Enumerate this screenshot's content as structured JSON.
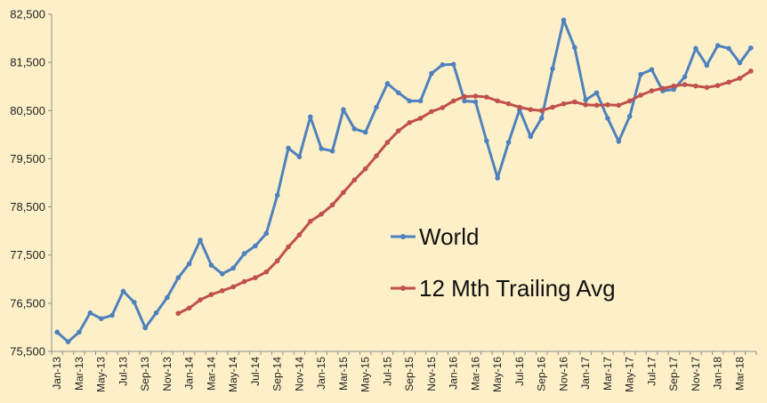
{
  "chart_data": {
    "type": "line",
    "title": "",
    "xlabel": "",
    "ylabel": "",
    "ylim": [
      75500,
      82500
    ],
    "y_ticks": [
      "75,500",
      "76,500",
      "77,500",
      "78,500",
      "79,500",
      "80,500",
      "81,500",
      "82,500"
    ],
    "y_tick_values": [
      75500,
      76500,
      77500,
      78500,
      79500,
      80500,
      81500,
      82500
    ],
    "x": [
      "Jan-13",
      "Feb-13",
      "Mar-13",
      "Apr-13",
      "May-13",
      "Jun-13",
      "Jul-13",
      "Aug-13",
      "Sep-13",
      "Oct-13",
      "Nov-13",
      "Dec-13",
      "Jan-14",
      "Feb-14",
      "Mar-14",
      "Apr-14",
      "May-14",
      "Jun-14",
      "Jul-14",
      "Aug-14",
      "Sep-14",
      "Oct-14",
      "Nov-14",
      "Dec-14",
      "Jan-15",
      "Feb-15",
      "Mar-15",
      "Apr-15",
      "May-15",
      "Jun-15",
      "Jul-15",
      "Aug-15",
      "Sep-15",
      "Oct-15",
      "Nov-15",
      "Dec-15",
      "Jan-16",
      "Feb-16",
      "Mar-16",
      "Apr-16",
      "May-16",
      "Jun-16",
      "Jul-16",
      "Aug-16",
      "Sep-16",
      "Oct-16",
      "Nov-16",
      "Dec-16",
      "Jan-17",
      "Feb-17",
      "Mar-17",
      "Apr-17",
      "May-17",
      "Jun-17",
      "Jul-17",
      "Aug-17",
      "Sep-17",
      "Oct-17",
      "Nov-17",
      "Dec-17",
      "Jan-18",
      "Feb-18",
      "Mar-18",
      "Apr-18"
    ],
    "x_tick_labels": [
      "Jan-13",
      "Mar-13",
      "May-13",
      "Jul-13",
      "Sep-13",
      "Nov-13",
      "Jan-14",
      "Mar-14",
      "May-14",
      "Jul-14",
      "Sep-14",
      "Nov-14",
      "Jan-15",
      "Mar-15",
      "May-15",
      "Jul-15",
      "Sep-15",
      "Nov-15",
      "Jan-16",
      "Mar-16",
      "May-16",
      "Jul-16",
      "Sep-16",
      "Nov-16",
      "Jan-17",
      "Mar-17",
      "May-17",
      "Jul-17",
      "Sep-17",
      "Nov-17",
      "Jan-18",
      "Mar-18"
    ],
    "grid": false,
    "legend_position": "center-right",
    "series": [
      {
        "name": "World",
        "color": "#4f81bd",
        "values": [
          75900,
          75700,
          75900,
          76300,
          76180,
          76250,
          76750,
          76520,
          75990,
          76300,
          76620,
          77030,
          77320,
          77810,
          77290,
          77110,
          77230,
          77530,
          77690,
          77950,
          78740,
          79720,
          79540,
          80370,
          79710,
          79660,
          80520,
          80120,
          80050,
          80570,
          81060,
          80870,
          80700,
          80700,
          81270,
          81450,
          81460,
          80700,
          80680,
          79870,
          79100,
          79840,
          80520,
          79960,
          80340,
          81370,
          82380,
          81810,
          80720,
          80870,
          80340,
          79860,
          80380,
          81250,
          81350,
          80910,
          80940,
          81200,
          81790,
          81440,
          81850,
          81790,
          81490,
          81800
        ]
      },
      {
        "name": "12 Mth Trailing Avg",
        "color": "#c0504d",
        "values": [
          null,
          null,
          null,
          null,
          null,
          null,
          null,
          null,
          null,
          null,
          null,
          76290,
          76400,
          76570,
          76680,
          76760,
          76840,
          76950,
          77030,
          77150,
          77380,
          77670,
          77920,
          78200,
          78350,
          78540,
          78800,
          79060,
          79290,
          79560,
          79840,
          80080,
          80250,
          80340,
          80480,
          80560,
          80700,
          80790,
          80800,
          80780,
          80700,
          80640,
          80570,
          80520,
          80500,
          80570,
          80640,
          80680,
          80620,
          80610,
          80620,
          80610,
          80700,
          80820,
          80910,
          80960,
          81010,
          81040,
          81010,
          80980,
          81020,
          81090,
          81170,
          81320
        ]
      }
    ]
  }
}
